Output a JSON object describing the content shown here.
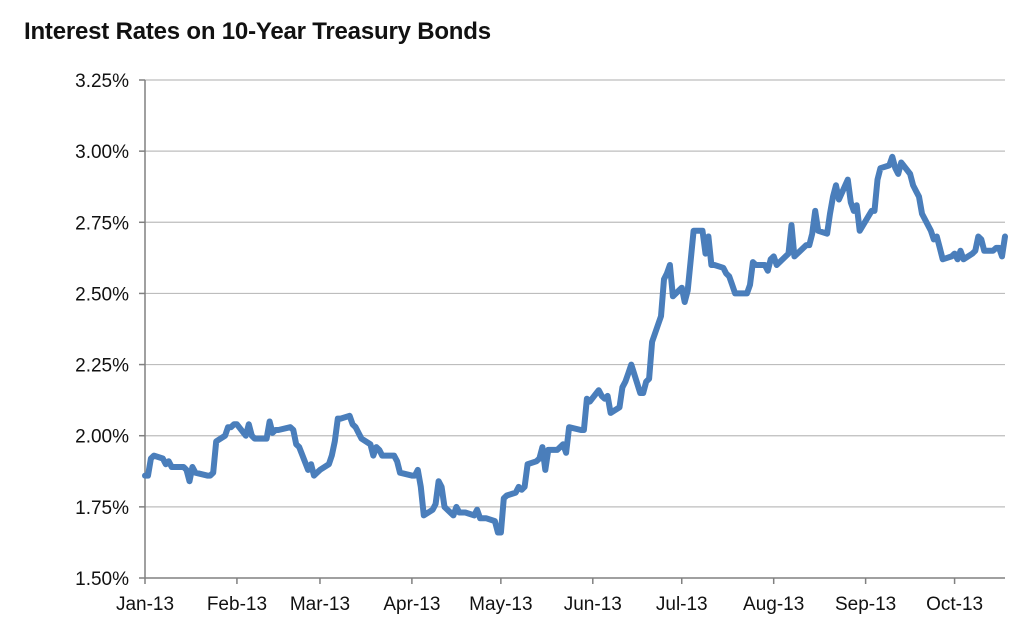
{
  "chart_data": {
    "type": "line",
    "title": "Interest Rates on 10-Year Treasury Bonds",
    "xlabel": "",
    "ylabel": "",
    "x_tick_labels": [
      "Jan-13",
      "Feb-13",
      "Mar-13",
      "Apr-13",
      "May-13",
      "Jun-13",
      "Jul-13",
      "Aug-13",
      "Sep-13",
      "Oct-13"
    ],
    "y_tick_labels": [
      "1.50%",
      "1.75%",
      "2.00%",
      "2.25%",
      "2.50%",
      "2.75%",
      "3.00%",
      "3.25%"
    ],
    "ylim": [
      1.5,
      3.25
    ],
    "xlim": [
      "2013-01-01",
      "2013-10-18"
    ],
    "grid": true,
    "legend": "none",
    "series_color": "#4a7ebb",
    "series": [
      {
        "x": [
          "2013-01-01",
          "2013-01-02",
          "2013-01-03",
          "2013-01-04",
          "2013-01-07",
          "2013-01-08",
          "2013-01-09",
          "2013-01-10",
          "2013-01-11",
          "2013-01-14",
          "2013-01-15",
          "2013-01-16",
          "2013-01-17",
          "2013-01-18",
          "2013-01-22",
          "2013-01-23",
          "2013-01-24",
          "2013-01-25",
          "2013-01-28",
          "2013-01-29",
          "2013-01-30",
          "2013-01-31",
          "2013-02-01",
          "2013-02-04",
          "2013-02-05",
          "2013-02-06",
          "2013-02-07",
          "2013-02-08",
          "2013-02-11",
          "2013-02-12",
          "2013-02-13",
          "2013-02-14",
          "2013-02-15",
          "2013-02-19",
          "2013-02-20",
          "2013-02-21",
          "2013-02-22",
          "2013-02-25",
          "2013-02-26",
          "2013-02-27",
          "2013-02-28",
          "2013-03-01",
          "2013-03-04",
          "2013-03-05",
          "2013-03-06",
          "2013-03-07",
          "2013-03-08",
          "2013-03-11",
          "2013-03-12",
          "2013-03-13",
          "2013-03-14",
          "2013-03-15",
          "2013-03-18",
          "2013-03-19",
          "2013-03-20",
          "2013-03-21",
          "2013-03-22",
          "2013-03-25",
          "2013-03-26",
          "2013-03-27",
          "2013-03-28",
          "2013-04-01",
          "2013-04-02",
          "2013-04-03",
          "2013-04-04",
          "2013-04-05",
          "2013-04-08",
          "2013-04-09",
          "2013-04-10",
          "2013-04-11",
          "2013-04-12",
          "2013-04-15",
          "2013-04-16",
          "2013-04-17",
          "2013-04-18",
          "2013-04-19",
          "2013-04-22",
          "2013-04-23",
          "2013-04-24",
          "2013-04-25",
          "2013-04-26",
          "2013-04-29",
          "2013-04-30",
          "2013-05-01",
          "2013-05-02",
          "2013-05-03",
          "2013-05-06",
          "2013-05-07",
          "2013-05-08",
          "2013-05-09",
          "2013-05-10",
          "2013-05-13",
          "2013-05-14",
          "2013-05-15",
          "2013-05-16",
          "2013-05-17",
          "2013-05-20",
          "2013-05-21",
          "2013-05-22",
          "2013-05-23",
          "2013-05-24",
          "2013-05-28",
          "2013-05-29",
          "2013-05-30",
          "2013-05-31",
          "2013-06-03",
          "2013-06-04",
          "2013-06-05",
          "2013-06-06",
          "2013-06-07",
          "2013-06-10",
          "2013-06-11",
          "2013-06-12",
          "2013-06-13",
          "2013-06-14",
          "2013-06-17",
          "2013-06-18",
          "2013-06-19",
          "2013-06-20",
          "2013-06-21",
          "2013-06-24",
          "2013-06-25",
          "2013-06-26",
          "2013-06-27",
          "2013-06-28",
          "2013-07-01",
          "2013-07-02",
          "2013-07-03",
          "2013-07-05",
          "2013-07-08",
          "2013-07-09",
          "2013-07-10",
          "2013-07-11",
          "2013-07-12",
          "2013-07-15",
          "2013-07-16",
          "2013-07-17",
          "2013-07-18",
          "2013-07-19",
          "2013-07-22",
          "2013-07-23",
          "2013-07-24",
          "2013-07-25",
          "2013-07-26",
          "2013-07-29",
          "2013-07-30",
          "2013-07-31",
          "2013-08-01",
          "2013-08-02",
          "2013-08-05",
          "2013-08-06",
          "2013-08-07",
          "2013-08-08",
          "2013-08-09",
          "2013-08-12",
          "2013-08-13",
          "2013-08-14",
          "2013-08-15",
          "2013-08-16",
          "2013-08-19",
          "2013-08-20",
          "2013-08-21",
          "2013-08-22",
          "2013-08-23",
          "2013-08-26",
          "2013-08-27",
          "2013-08-28",
          "2013-08-29",
          "2013-08-30",
          "2013-09-03",
          "2013-09-04",
          "2013-09-05",
          "2013-09-06",
          "2013-09-09",
          "2013-09-10",
          "2013-09-11",
          "2013-09-12",
          "2013-09-13",
          "2013-09-16",
          "2013-09-17",
          "2013-09-18",
          "2013-09-19",
          "2013-09-20",
          "2013-09-23",
          "2013-09-24",
          "2013-09-25",
          "2013-09-26",
          "2013-09-27",
          "2013-09-30",
          "2013-10-01",
          "2013-10-02",
          "2013-10-03",
          "2013-10-04",
          "2013-10-07",
          "2013-10-08",
          "2013-10-09",
          "2013-10-10",
          "2013-10-11",
          "2013-10-14",
          "2013-10-15",
          "2013-10-16",
          "2013-10-17",
          "2013-10-18"
        ],
        "y": [
          1.86,
          1.86,
          1.92,
          1.93,
          1.92,
          1.9,
          1.91,
          1.89,
          1.89,
          1.89,
          1.88,
          1.84,
          1.89,
          1.87,
          1.86,
          1.86,
          1.87,
          1.98,
          2.0,
          2.03,
          2.03,
          2.04,
          2.04,
          2.0,
          2.04,
          2.0,
          1.99,
          1.99,
          1.99,
          2.05,
          2.01,
          2.02,
          2.02,
          2.03,
          2.02,
          1.97,
          1.96,
          1.88,
          1.9,
          1.86,
          1.87,
          1.88,
          1.9,
          1.93,
          1.98,
          2.06,
          2.06,
          2.07,
          2.04,
          2.03,
          2.01,
          1.99,
          1.97,
          1.93,
          1.96,
          1.95,
          1.93,
          1.93,
          1.93,
          1.91,
          1.87,
          1.86,
          1.86,
          1.88,
          1.82,
          1.72,
          1.74,
          1.76,
          1.84,
          1.82,
          1.75,
          1.72,
          1.75,
          1.73,
          1.73,
          1.73,
          1.72,
          1.74,
          1.71,
          1.71,
          1.71,
          1.7,
          1.66,
          1.66,
          1.78,
          1.79,
          1.8,
          1.82,
          1.81,
          1.82,
          1.9,
          1.91,
          1.92,
          1.96,
          1.88,
          1.95,
          1.95,
          1.96,
          1.97,
          1.94,
          2.03,
          2.02,
          2.02,
          2.13,
          2.12,
          2.16,
          2.14,
          2.13,
          2.14,
          2.08,
          2.1,
          2.17,
          2.19,
          2.22,
          2.25,
          2.15,
          2.15,
          2.19,
          2.2,
          2.33,
          2.42,
          2.55,
          2.57,
          2.6,
          2.49,
          2.52,
          2.47,
          2.51,
          2.72,
          2.72,
          2.64,
          2.7,
          2.6,
          2.6,
          2.59,
          2.57,
          2.56,
          2.53,
          2.5,
          2.5,
          2.5,
          2.53,
          2.61,
          2.6,
          2.6,
          2.58,
          2.62,
          2.63,
          2.6,
          2.63,
          2.64,
          2.74,
          2.63,
          2.64,
          2.67,
          2.67,
          2.71,
          2.79,
          2.72,
          2.71,
          2.78,
          2.84,
          2.88,
          2.83,
          2.9,
          2.82,
          2.79,
          2.81,
          2.72,
          2.79,
          2.79,
          2.9,
          2.94,
          2.95,
          2.98,
          2.94,
          2.92,
          2.96,
          2.92,
          2.88,
          2.86,
          2.84,
          2.78,
          2.72,
          2.69,
          2.7,
          2.66,
          2.62,
          2.63,
          2.64,
          2.62,
          2.65,
          2.62,
          2.64,
          2.65,
          2.7,
          2.69,
          2.65,
          2.65,
          2.66,
          2.66,
          2.63,
          2.7
        ]
      }
    ]
  }
}
